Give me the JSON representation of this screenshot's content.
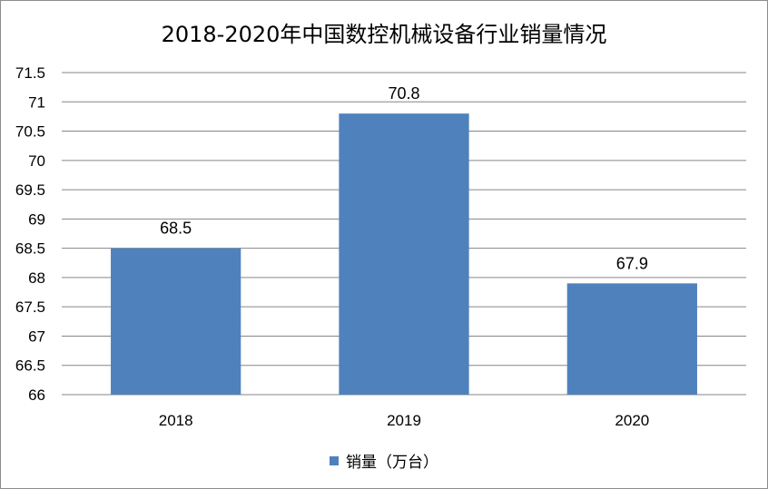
{
  "chart_data": {
    "type": "bar",
    "title": "2018-2020年中国数控机械设备行业销量情况",
    "categories": [
      "2018",
      "2019",
      "2020"
    ],
    "series": [
      {
        "name": "销量（万台）",
        "values": [
          68.5,
          70.8,
          67.9
        ],
        "color": "#4f81bd"
      }
    ],
    "data_labels": [
      "68.5",
      "70.8",
      "67.9"
    ],
    "ylim": [
      66,
      71.5
    ],
    "y_ticks": [
      "66",
      "66.5",
      "67",
      "67.5",
      "68",
      "68.5",
      "69",
      "69.5",
      "70",
      "70.5",
      "71",
      "71.5"
    ],
    "xlabel": "",
    "ylabel": "",
    "grid": true,
    "legend_position": "bottom",
    "colors": {
      "bar": "#4f81bd",
      "grid": "#868686"
    }
  }
}
